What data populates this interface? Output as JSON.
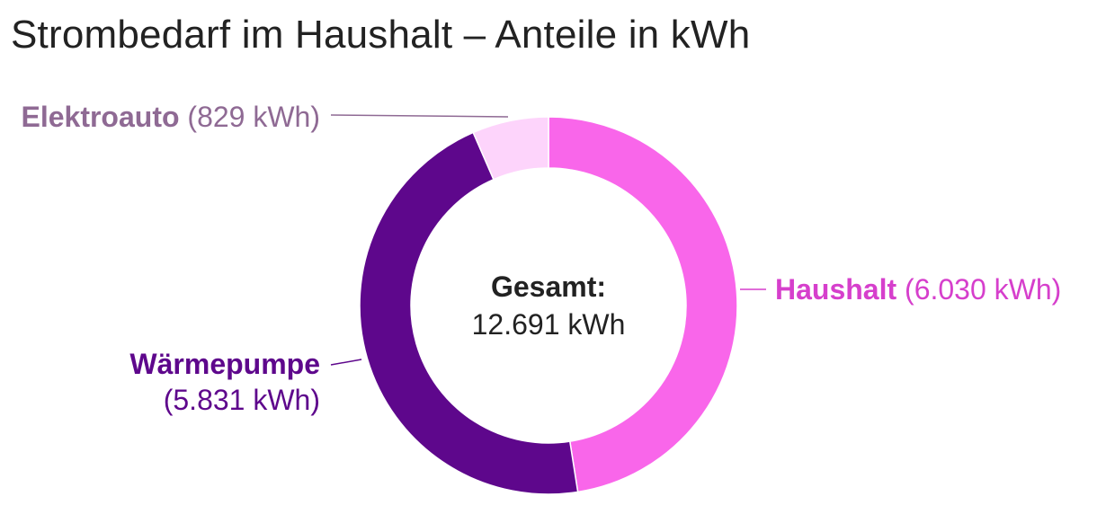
{
  "chart_data": {
    "type": "pie",
    "title": "Strombedarf im Haushalt – Anteile in kWh",
    "center_title": "Gesamt:",
    "center_value": "12.691 kWh",
    "slices": [
      {
        "name": "Haushalt",
        "value": 6030,
        "value_text": "(6.030 kWh)",
        "color": "#f966ea",
        "label_color": "#d63fcc"
      },
      {
        "name": "Wärmepumpe",
        "value": 5831,
        "value_text": "(5.831 kWh)",
        "color": "#5e078c",
        "label_color": "#5e078c"
      },
      {
        "name": "Elektroauto",
        "value": 829,
        "value_text": "(829 kWh)",
        "color": "#fdd4fb",
        "label_color": "#8f6a94"
      }
    ]
  }
}
